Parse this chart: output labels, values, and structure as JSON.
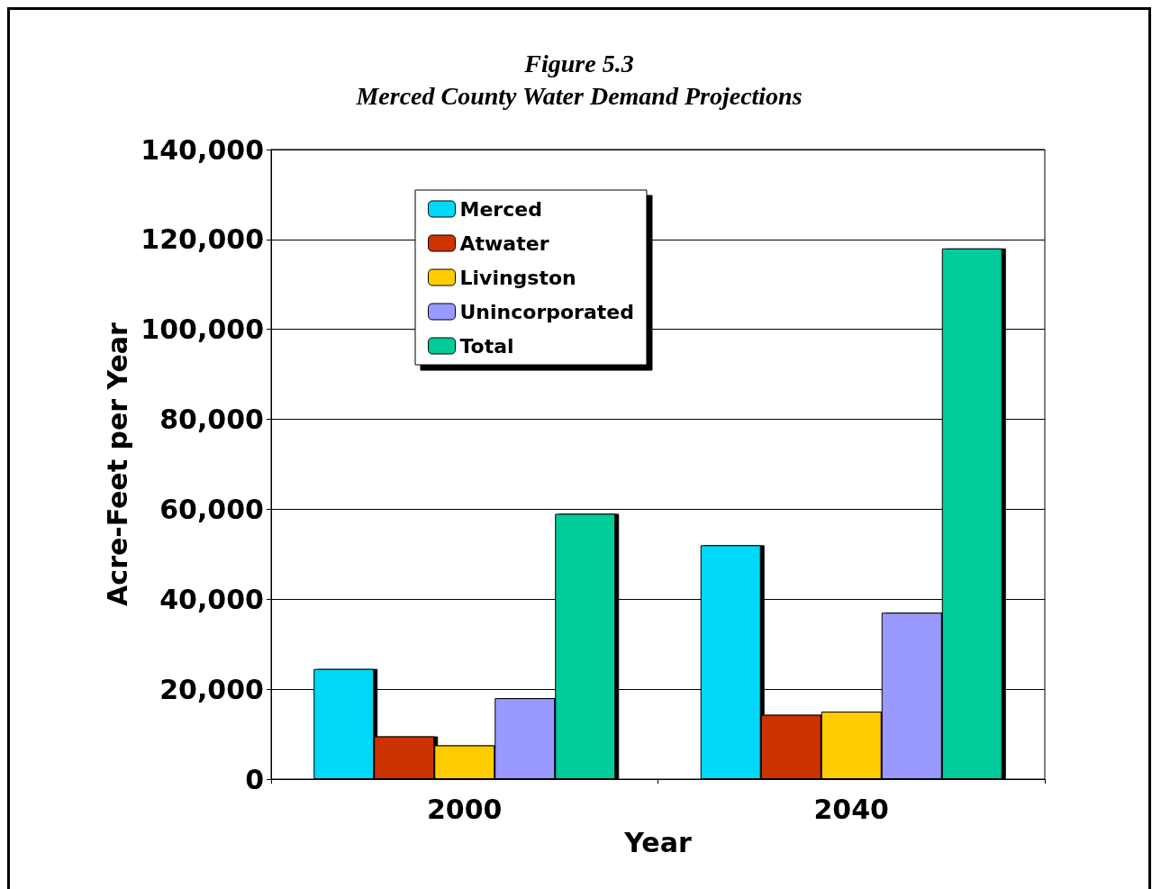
{
  "chart_data": {
    "type": "bar",
    "title": "Figure 5.3",
    "subtitle": "Merced County Water Demand Projections",
    "xlabel": "Year",
    "ylabel": "Acre-Feet per Year",
    "categories": [
      "2000",
      "2040"
    ],
    "series": [
      {
        "name": "Merced",
        "color": "#00d8f8",
        "values": [
          24500,
          52000
        ]
      },
      {
        "name": "Atwater",
        "color": "#cc3300",
        "values": [
          9500,
          14300
        ]
      },
      {
        "name": "Livingston",
        "color": "#ffcc00",
        "values": [
          7500,
          15000
        ]
      },
      {
        "name": "Unincorporated",
        "color": "#9999ff",
        "values": [
          18000,
          37000
        ]
      },
      {
        "name": "Total",
        "color": "#00cc99",
        "values": [
          59000,
          118000
        ]
      }
    ],
    "ylim": [
      0,
      140000
    ],
    "yticks": [
      0,
      {
        "value": 20000,
        "label": "20,000"
      },
      {
        "value": 40000,
        "label": "40,000"
      },
      {
        "value": 60000,
        "label": "60,000"
      },
      {
        "value": 80000,
        "label": "80,000"
      },
      {
        "value": 100000,
        "label": "100,000"
      },
      {
        "value": 120000,
        "label": "120,000"
      },
      {
        "value": 140000,
        "label": "140,000"
      }
    ],
    "grid": "y",
    "legend": "top left"
  }
}
